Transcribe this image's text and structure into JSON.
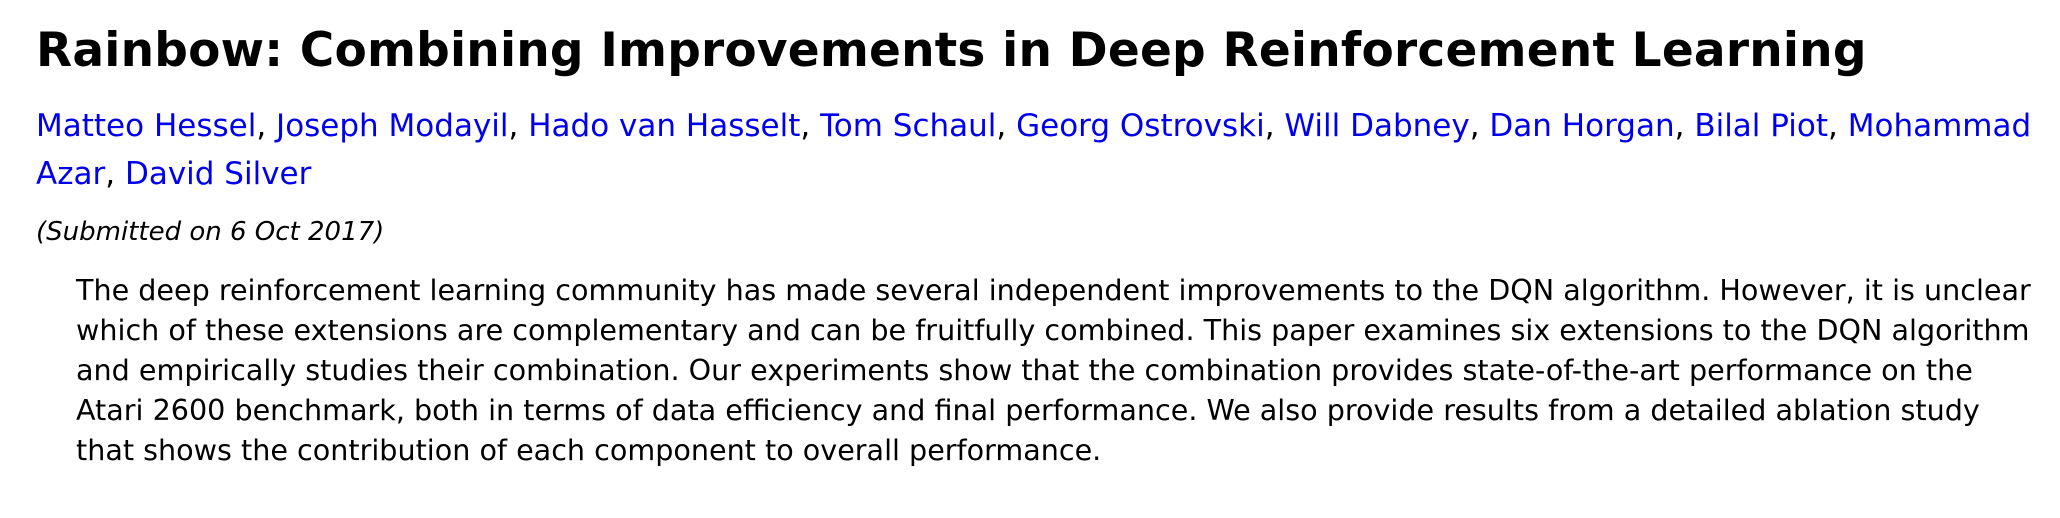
{
  "paper": {
    "title": "Rainbow: Combining Improvements in Deep Reinforcement Learning",
    "authors": [
      "Matteo Hessel",
      "Joseph Modayil",
      "Hado van Hasselt",
      "Tom Schaul",
      "Georg Ostrovski",
      "Will Dabney",
      "Dan Horgan",
      "Bilal Piot",
      "Mohammad Azar",
      "David Silver"
    ],
    "author_separator": ", ",
    "dateline": "(Submitted on 6 Oct 2017)",
    "abstract": "The deep reinforcement learning community has made several independent improvements to the DQN algorithm. However, it is unclear which of these extensions are complementary and can be fruitfully combined. This paper examines six extensions to the DQN algorithm and empirically studies their combination. Our experiments show that the combination provides state-of-the-art performance on the Atari 2600 benchmark, both in terms of data efficiency and final performance. We also provide results from a detailed ablation study that shows the contribution of each component to overall performance."
  },
  "colors": {
    "link": "#0000ee",
    "text": "#000000",
    "background": "#ffffff"
  }
}
